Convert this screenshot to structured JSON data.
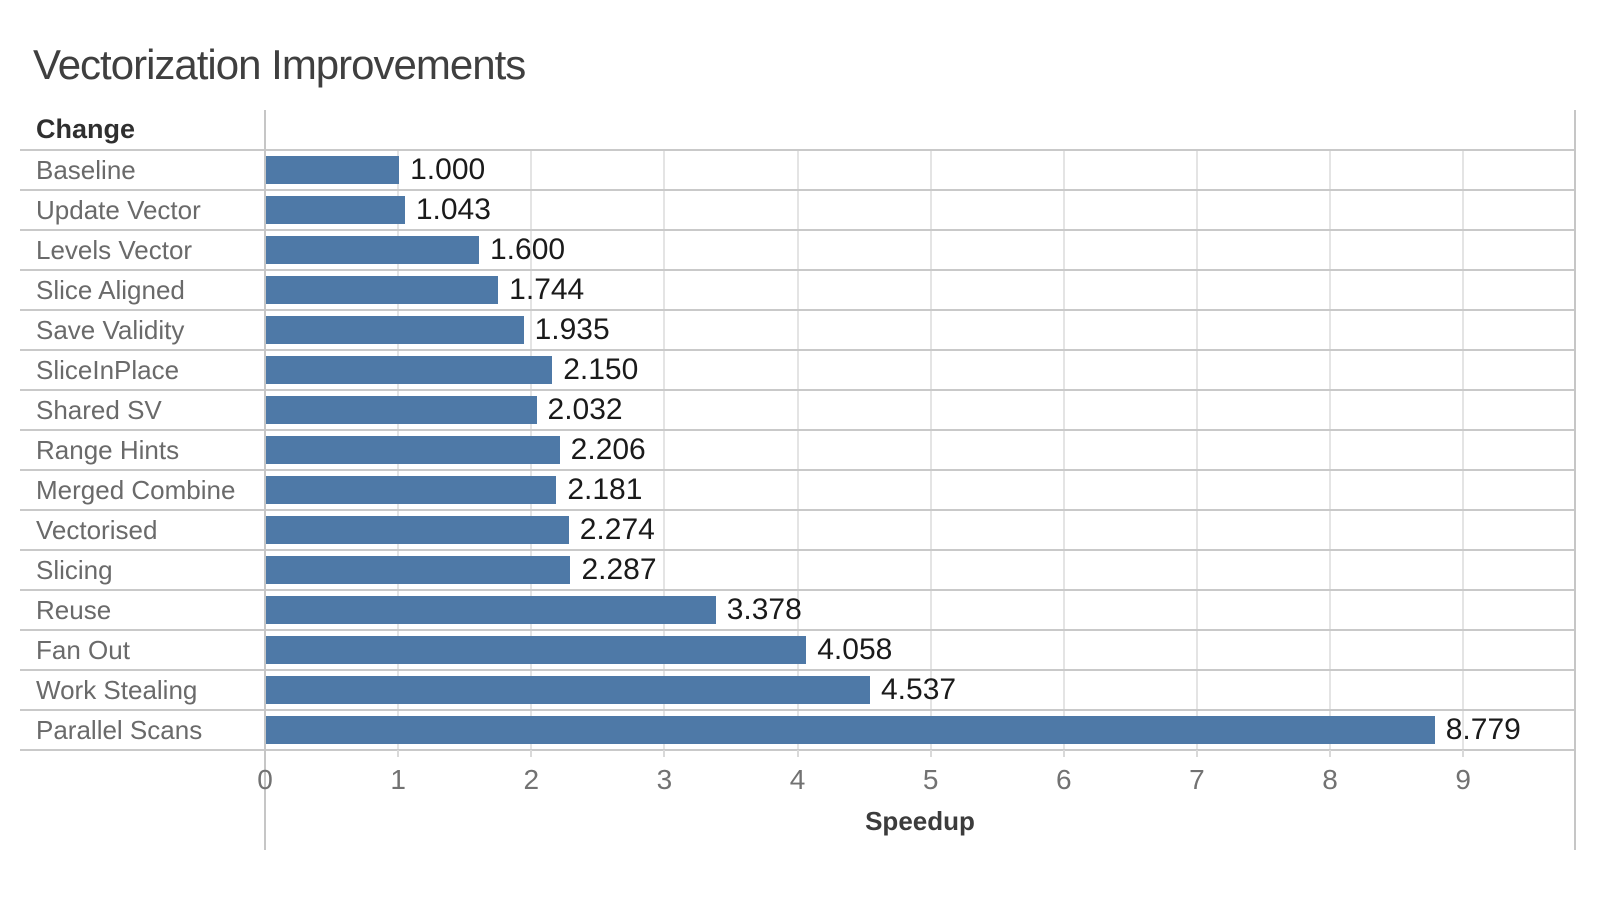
{
  "chart_data": {
    "type": "bar",
    "orientation": "horizontal",
    "title": "Vectorization Improvements",
    "xlabel": "Speedup",
    "ylabel": "Change",
    "categories": [
      "Baseline",
      "Update Vector",
      "Levels Vector",
      "Slice Aligned",
      "Save Validity",
      "SliceInPlace",
      "Shared SV",
      "Range Hints",
      "Merged Combine",
      "Vectorised",
      "Slicing",
      "Reuse",
      "Fan Out",
      "Work Stealing",
      "Parallel Scans"
    ],
    "values": [
      1.0,
      1.043,
      1.6,
      1.744,
      1.935,
      2.15,
      2.032,
      2.206,
      2.181,
      2.274,
      2.287,
      3.378,
      4.058,
      4.537,
      8.779
    ],
    "value_labels": [
      "1.000",
      "1.043",
      "1.600",
      "1.744",
      "1.935",
      "2.150",
      "2.032",
      "2.206",
      "2.181",
      "2.274",
      "2.287",
      "3.378",
      "4.058",
      "4.537",
      "8.779"
    ],
    "xticks": [
      0,
      1,
      2,
      3,
      4,
      5,
      6,
      7,
      8,
      9
    ],
    "xlim": [
      0,
      9.84
    ],
    "grid": true,
    "legend": "none",
    "bar_color": "#4e79a7"
  }
}
